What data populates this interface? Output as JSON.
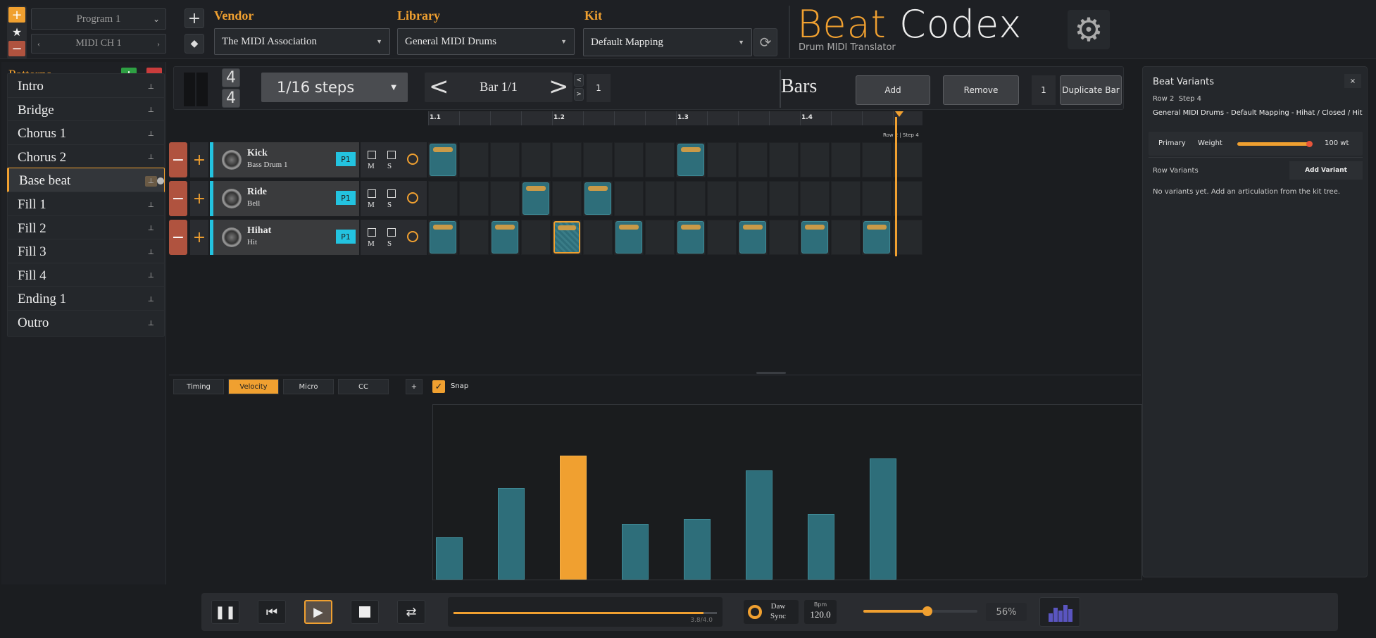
{
  "program": {
    "selected": "Program 1",
    "channel": "MIDI CH 1"
  },
  "vendor": {
    "label": "Vendor",
    "selected": "The MIDI Association"
  },
  "library": {
    "label": "Library",
    "selected": "General MIDI Drums"
  },
  "kit": {
    "label": "Kit",
    "selected": "Default Mapping"
  },
  "brand": {
    "word1": "Beat",
    "word2": "Codex",
    "subtitle": "Drum MIDI Translator"
  },
  "patterns": {
    "title": "Patterns",
    "items": [
      "Intro",
      "Bridge",
      "Chorus 1",
      "Chorus 2",
      "Base beat",
      "Fill 1",
      "Fill 2",
      "Fill 3",
      "Fill 4",
      "Ending 1",
      "Outro"
    ],
    "active_index": 4
  },
  "time_signature": {
    "numerator": "4",
    "denominator": "4"
  },
  "steps": {
    "selected": "1/16 steps"
  },
  "bar_nav": {
    "label": "Bar 1/1",
    "count": "1"
  },
  "bars": {
    "title": "Bars",
    "add": "Add",
    "remove": "Remove",
    "dup_count": "1",
    "duplicate": "Duplicate Bar"
  },
  "ruler": {
    "labels": [
      "1.1",
      "1.2",
      "1.3",
      "1.4"
    ],
    "cursor_label": "Row 2 | Step 4"
  },
  "rows": [
    {
      "name": "Kick",
      "sub": "Bass Drum 1",
      "badge": "P1",
      "m": "M",
      "s": "S",
      "icon": "drum-icon",
      "steps": [
        0,
        8
      ]
    },
    {
      "name": "Ride",
      "sub": "Bell",
      "badge": "P1",
      "m": "M",
      "s": "S",
      "icon": "cymbal-icon",
      "steps": [
        3,
        5
      ]
    },
    {
      "name": "Hihat",
      "sub": "Hit",
      "badge": "P1",
      "m": "M",
      "s": "S",
      "icon": "hihat-icon",
      "steps": [
        0,
        2,
        4,
        6,
        8,
        10,
        12,
        14
      ],
      "selected_step": 4
    }
  ],
  "lower_tabs": {
    "timing": "Timing",
    "velocity": "Velocity",
    "micro": "Micro",
    "cc": "CC",
    "add": "+",
    "snap": "Snap"
  },
  "velocity_bars": [
    {
      "step": 0,
      "value": 34,
      "highlight": false
    },
    {
      "step": 2,
      "value": 74,
      "highlight": false
    },
    {
      "step": 4,
      "value": 100,
      "highlight": true
    },
    {
      "step": 6,
      "value": 45,
      "highlight": false
    },
    {
      "step": 8,
      "value": 49,
      "highlight": false
    },
    {
      "step": 10,
      "value": 88,
      "highlight": false
    },
    {
      "step": 12,
      "value": 53,
      "highlight": false
    },
    {
      "step": 14,
      "value": 98,
      "highlight": false
    }
  ],
  "variants": {
    "title": "Beat Variants",
    "close": "×",
    "location": "Row 2  Step 4",
    "path": "General MIDI Drums - Default Mapping - Hihat / Closed / Hit",
    "primary": "Primary",
    "weight_label": "Weight",
    "weight_value": "100 wt",
    "weight_fraction": 1.0,
    "row_variants": "Row Variants",
    "add_variant": "Add Variant",
    "empty": "No variants yet. Add an articulation from the kit tree."
  },
  "transport": {
    "position": "3.8/4.0",
    "position_fraction": 0.95,
    "daw": "Daw",
    "sync": "Sync",
    "bpm_label": "Bpm",
    "bpm": "120.0",
    "volume": "56%",
    "volume_fraction": 0.56
  },
  "colors": {
    "accent": "#f0a030",
    "teal": "#2e6e7a",
    "cyan": "#23c3e0",
    "red": "#b0533f",
    "green": "#2ea043"
  }
}
